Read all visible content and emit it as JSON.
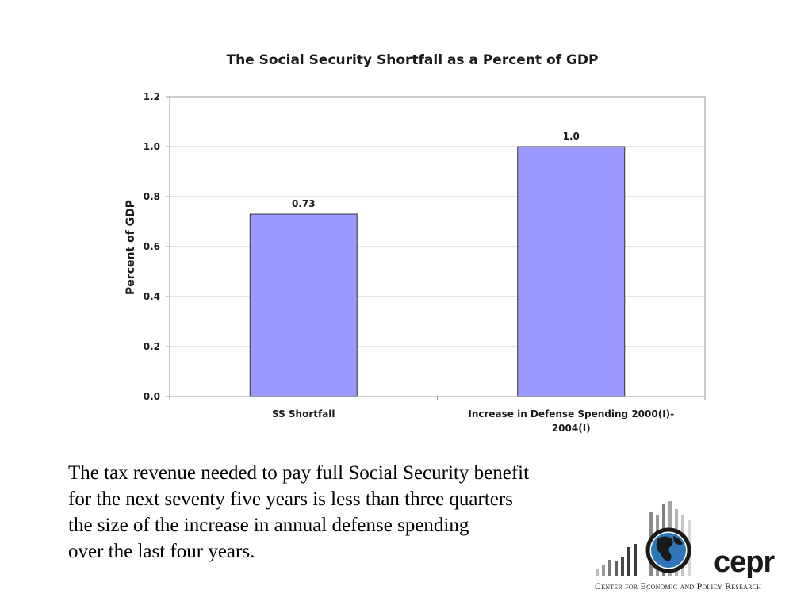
{
  "colors": {
    "bar": "#9999ff",
    "bar_stroke": "#333333",
    "grid": "#c8c8c8",
    "frame": "#999999"
  },
  "chart_data": {
    "type": "bar",
    "title": "The Social Security Shortfall as a Percent of GDP",
    "ylabel": "Percent of GDP",
    "xlabel": "",
    "ylim": [
      0,
      1.2
    ],
    "yticks": [
      "0.0",
      "0.2",
      "0.4",
      "0.6",
      "0.8",
      "1.0",
      "1.2"
    ],
    "categories": [
      [
        "SS Shortfall"
      ],
      [
        "Increase in Defense Spending 2000(I)-",
        "2004(I)"
      ]
    ],
    "values": [
      0.73,
      1.0
    ],
    "data_labels": [
      "0.73",
      "1.0"
    ],
    "grid": true,
    "legend": "none"
  },
  "caption": {
    "lines": [
      "The tax revenue needed to pay full Social Security benefit",
      "for the next seventy five years is less than three quarters",
      "the size of the increase in annual defense spending",
      "over the last four years."
    ]
  },
  "logo": {
    "name": "cepr",
    "subtitle": "Center for Economic and Policy Research"
  }
}
